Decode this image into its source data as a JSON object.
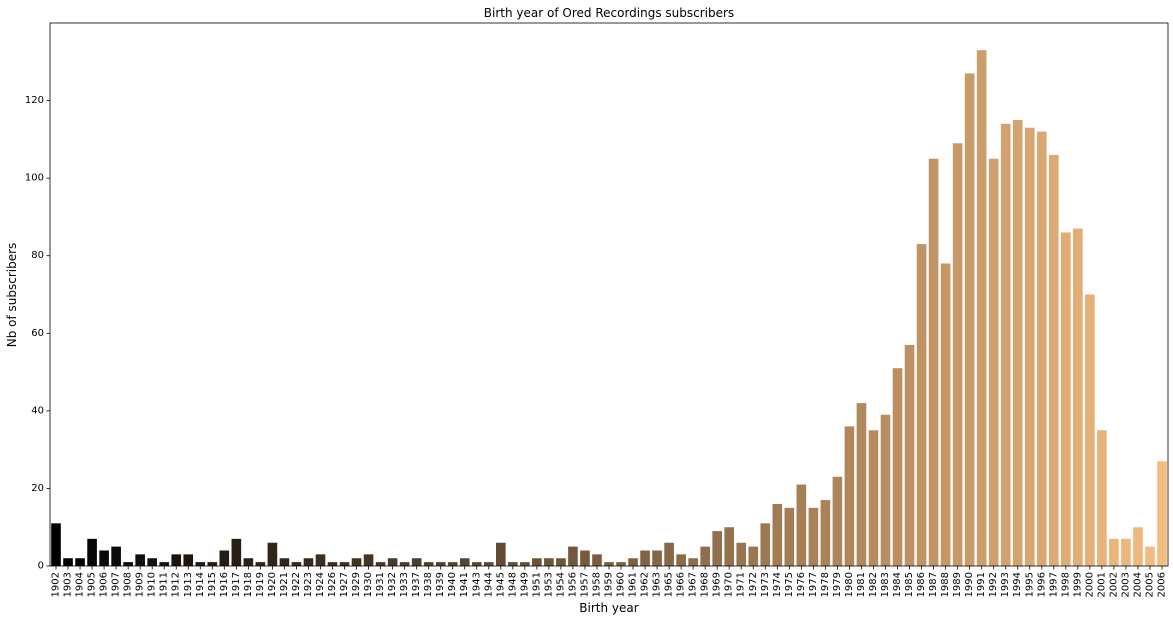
{
  "chart_data": {
    "type": "bar",
    "title": "Birth year of Ored Recordings subscribers",
    "xlabel": "Birth year",
    "ylabel": "Nb of subscribers",
    "ylim": [
      0,
      140
    ],
    "yticks": [
      0,
      20,
      40,
      60,
      80,
      100,
      120
    ],
    "grid": false,
    "legend": "none",
    "palette": [
      "#000000",
      "#f5bc80"
    ],
    "categories": [
      "1902",
      "1903",
      "1904",
      "1905",
      "1906",
      "1907",
      "1908",
      "1909",
      "1910",
      "1911",
      "1912",
      "1913",
      "1914",
      "1915",
      "1916",
      "1917",
      "1918",
      "1919",
      "1920",
      "1921",
      "1922",
      "1923",
      "1924",
      "1926",
      "1927",
      "1929",
      "1930",
      "1931",
      "1932",
      "1933",
      "1937",
      "1938",
      "1939",
      "1940",
      "1941",
      "1943",
      "1944",
      "1945",
      "1948",
      "1949",
      "1951",
      "1953",
      "1954",
      "1956",
      "1957",
      "1958",
      "1959",
      "1960",
      "1961",
      "1962",
      "1963",
      "1965",
      "1966",
      "1967",
      "1968",
      "1969",
      "1970",
      "1971",
      "1972",
      "1973",
      "1974",
      "1975",
      "1976",
      "1977",
      "1978",
      "1979",
      "1980",
      "1981",
      "1982",
      "1983",
      "1984",
      "1985",
      "1986",
      "1987",
      "1988",
      "1989",
      "1990",
      "1991",
      "1992",
      "1993",
      "1994",
      "1995",
      "1996",
      "1997",
      "1998",
      "1999",
      "2000",
      "2001",
      "2002",
      "2003",
      "2004",
      "2005",
      "2006"
    ],
    "values": [
      11,
      2,
      2,
      7,
      4,
      5,
      1,
      3,
      2,
      1,
      3,
      3,
      1,
      1,
      4,
      7,
      2,
      1,
      6,
      2,
      1,
      2,
      3,
      1,
      1,
      2,
      3,
      1,
      2,
      1,
      2,
      1,
      1,
      1,
      2,
      1,
      1,
      6,
      1,
      1,
      2,
      2,
      2,
      5,
      4,
      3,
      1,
      1,
      2,
      4,
      4,
      6,
      3,
      2,
      5,
      9,
      10,
      6,
      5,
      11,
      16,
      15,
      21,
      15,
      17,
      23,
      36,
      42,
      35,
      39,
      51,
      57,
      83,
      105,
      78,
      109,
      127,
      133,
      105,
      114,
      115,
      113,
      112,
      106,
      86,
      87,
      70,
      35,
      7,
      7,
      10,
      5,
      27
    ]
  }
}
